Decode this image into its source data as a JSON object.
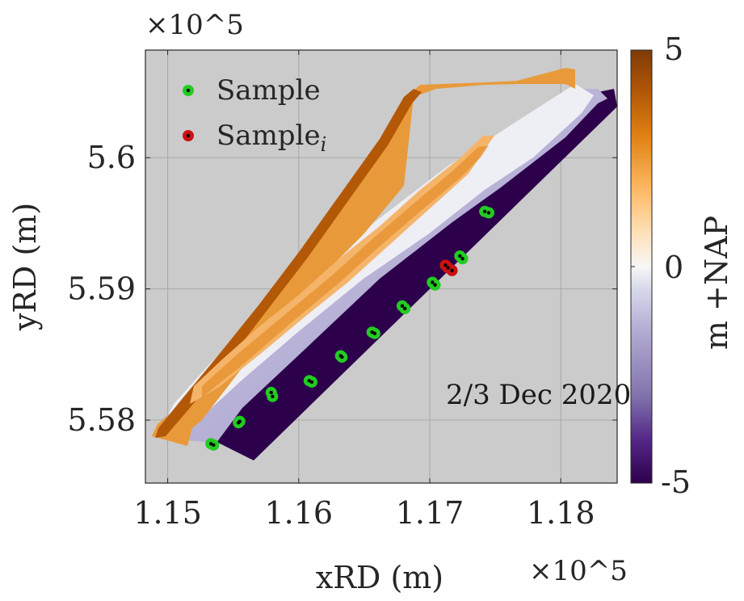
{
  "chart_data": {
    "type": "scatter",
    "title": "",
    "xlabel": "xRD (m)",
    "ylabel": "yRD (m)",
    "x_exponent_label": "×10^5",
    "y_exponent_label": "×10^5",
    "x_scale": 100000,
    "y_scale": 100000,
    "xlim": [
      1.1483,
      1.1843
    ],
    "ylim": [
      5.5752,
      5.6082
    ],
    "x_ticks": [
      1.15,
      1.16,
      1.17,
      1.18
    ],
    "x_tick_labels": [
      "1.15",
      "1.16",
      "1.17",
      "1.18"
    ],
    "y_ticks": [
      5.58,
      5.59,
      5.6
    ],
    "y_tick_labels": [
      "5.58",
      "5.59",
      "5.6"
    ],
    "grid": true,
    "background_color": "#cbcbcb",
    "annotation": "2/3 Dec 2020",
    "legend": {
      "placement": "top-left",
      "entries": [
        {
          "label": "Sample",
          "color": "#22cc22"
        },
        {
          "label": "Sample",
          "subscript": "i",
          "color": "#cc1111"
        }
      ]
    },
    "colorbar": {
      "label": "m +NAP",
      "min": -5,
      "max": 5,
      "tick_labels": [
        "5",
        "0",
        "-5"
      ],
      "colormap": [
        "#2d004b",
        "#542788",
        "#8073ac",
        "#b2abd2",
        "#d8daeb",
        "#f7f7f7",
        "#fee0b6",
        "#fdb863",
        "#e08214",
        "#b35806",
        "#7f3b08"
      ]
    },
    "series": [
      {
        "name": "Sample",
        "color": "#22cc22",
        "points": [
          [
            1.1533,
            5.5782
          ],
          [
            1.1535,
            5.5781
          ],
          [
            1.1554,
            5.5798
          ],
          [
            1.1555,
            5.5799
          ],
          [
            1.1579,
            5.5821
          ],
          [
            1.158,
            5.5818
          ],
          [
            1.1608,
            5.583
          ],
          [
            1.161,
            5.5829
          ],
          [
            1.1632,
            5.5849
          ],
          [
            1.1633,
            5.5848
          ],
          [
            1.1656,
            5.5867
          ],
          [
            1.1658,
            5.5866
          ],
          [
            1.1679,
            5.5887
          ],
          [
            1.1681,
            5.5885
          ],
          [
            1.1702,
            5.5905
          ],
          [
            1.1704,
            5.5903
          ],
          [
            1.1723,
            5.5925
          ],
          [
            1.1725,
            5.5923
          ],
          [
            1.1742,
            5.5959
          ],
          [
            1.1745,
            5.5958
          ]
        ]
      },
      {
        "name": "Sample_i",
        "color": "#cc1111",
        "points": [
          [
            1.1712,
            5.5918
          ],
          [
            1.1714,
            5.5916
          ],
          [
            1.1717,
            5.5914
          ]
        ]
      }
    ]
  }
}
